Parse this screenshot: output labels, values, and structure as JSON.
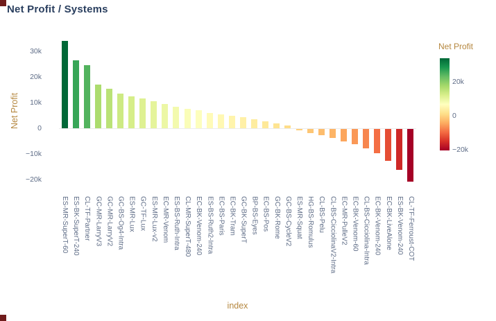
{
  "colors": {
    "page-bg": "#ffffff",
    "title": "#2a3f5f",
    "axis-title": "#b5873f",
    "tick-label": "#5f6d87",
    "corner-mark": "#701c1c",
    "zero-line": "#ececec"
  },
  "chart_data": {
    "type": "bar",
    "title": "Net Profit / Systems",
    "xlabel": "index",
    "ylabel": "Net Profit",
    "colormap": "RdYlGn",
    "color_range": [
      -20500,
      34000
    ],
    "color_stops": [
      [
        0.0,
        "#a50026"
      ],
      [
        0.1,
        "#d73027"
      ],
      [
        0.2,
        "#f46d43"
      ],
      [
        0.3,
        "#fdae61"
      ],
      [
        0.4,
        "#fee08b"
      ],
      [
        0.5,
        "#ffffbf"
      ],
      [
        0.6,
        "#d9ef8b"
      ],
      [
        0.7,
        "#a6d96a"
      ],
      [
        0.8,
        "#66bd63"
      ],
      [
        0.9,
        "#1a9850"
      ],
      [
        1.0,
        "#006837"
      ]
    ],
    "colorbar": {
      "title": "Net Profit",
      "tick_labels": [
        "20k",
        "0",
        "−20k"
      ],
      "tick_values": [
        20000,
        0,
        -20000
      ]
    },
    "y_axis": {
      "tick_labels": [
        "30k",
        "20k",
        "10k",
        "0",
        "−10k",
        "−20k"
      ],
      "tick_values": [
        30000,
        20000,
        10000,
        0,
        -10000,
        -20000
      ],
      "range": [
        -24000,
        36000
      ]
    },
    "categories": [
      "ES-MR-SuperT-60",
      "ES-BK-SuperT-240",
      "CL-TF-Partner",
      "GC-MR-LarryV3",
      "GC-MR-LarryV2",
      "GC-BS-Og4-Intra",
      "ES-MR-Lux",
      "GC-TF-Lux",
      "ES-MR-Lux-v2",
      "EC-MR-Venom",
      "ES-BS-Ruth-Intra",
      "CL-MR-SuperT-480",
      "EC-BK-Venom-240",
      "ES-BS-Ruth2-Intra",
      "EC-BS-Paris",
      "EC-BK-Tram",
      "GC-BK-SuperT",
      "BP-BS-Eyes",
      "EC-BS-Pos",
      "GC-BK-Rome",
      "GC-BS-CycleV2",
      "ES-MR-Squat",
      "HG-BS-Romulus",
      "CL-BS-Pelu",
      "CL-BS-CicciolinaV2-Intra",
      "EC-MR-PulleV2",
      "EC-BK-Venom-60",
      "CL-BS-Cicciolina-Intra",
      "EC-BK-Venom-240",
      "EC-BK-LiveAlone",
      "ES-BK-Venom-240",
      "CL-TF-Ferroust-COT"
    ],
    "values": [
      34000,
      26500,
      24500,
      17000,
      15500,
      13500,
      12500,
      11500,
      10500,
      9500,
      8500,
      7500,
      7000,
      6000,
      5500,
      4800,
      4200,
      3500,
      2800,
      2000,
      1000,
      -600,
      -1500,
      -2500,
      -3500,
      -4800,
      -6000,
      -7500,
      -9500,
      -12500,
      -16000,
      -20500
    ]
  }
}
